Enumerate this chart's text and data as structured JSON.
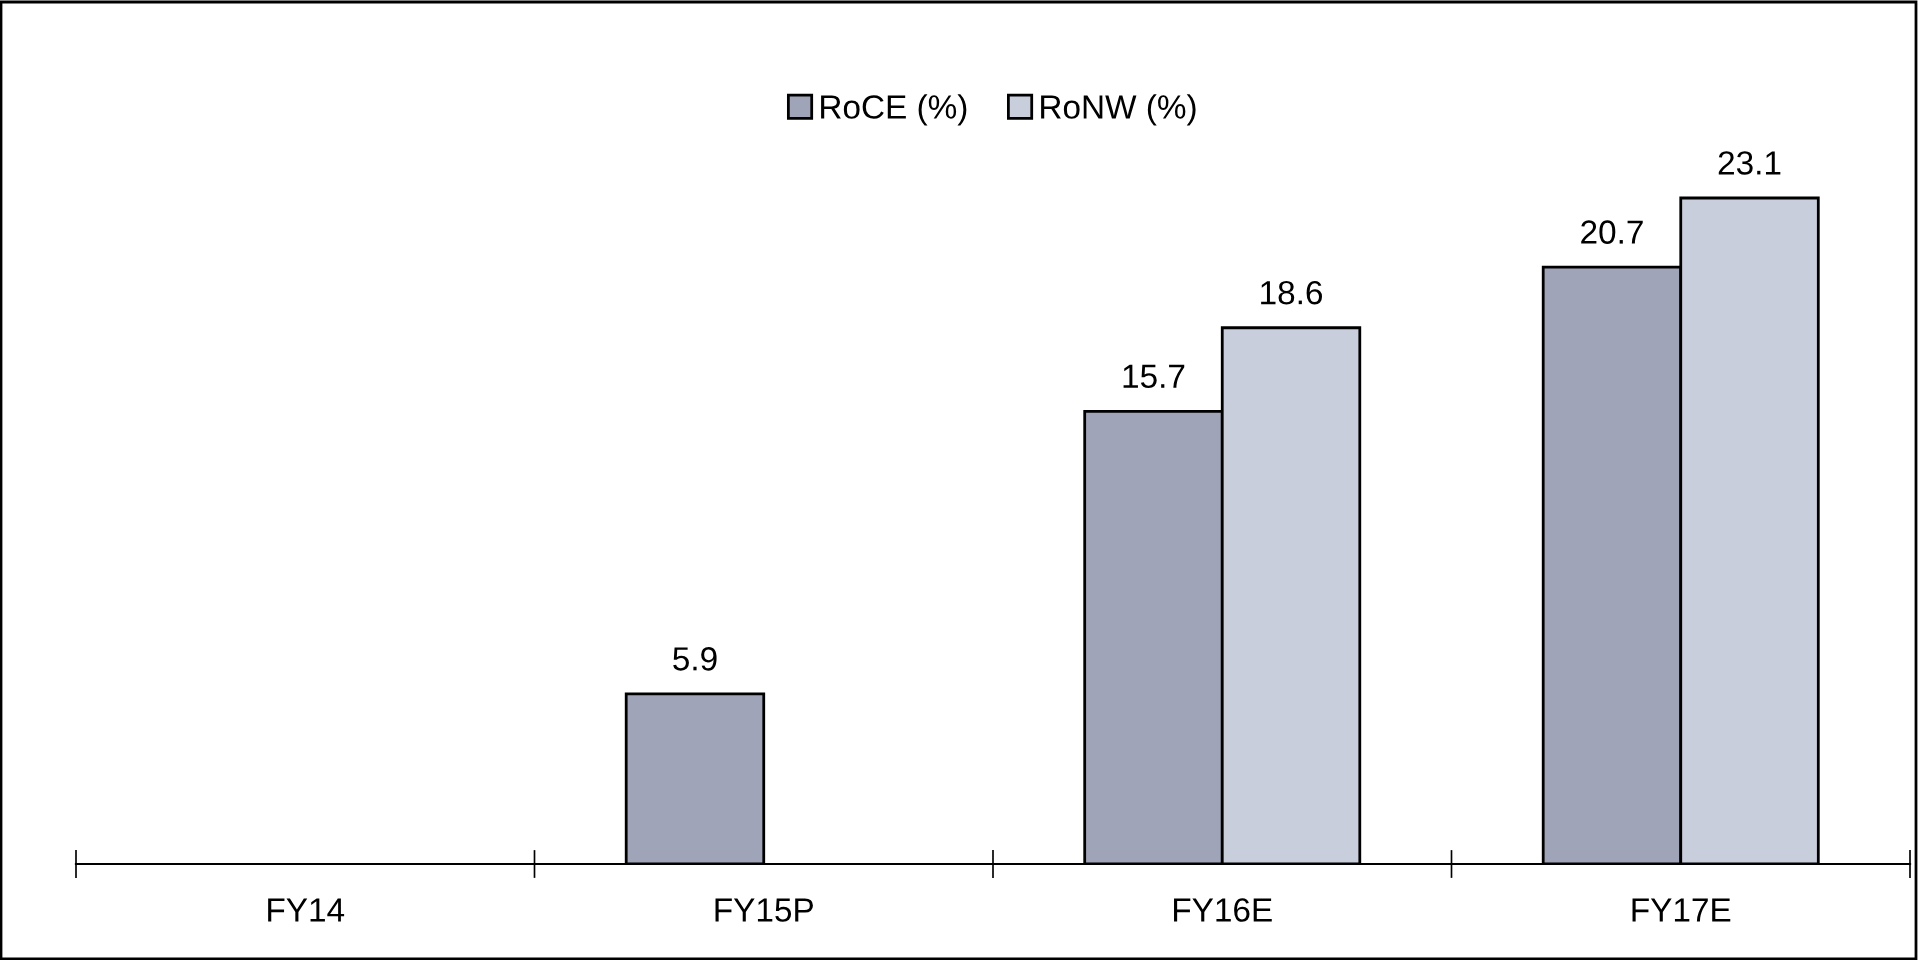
{
  "chart_data": {
    "type": "bar",
    "categories": [
      "FY14",
      "FY15P",
      "FY16E",
      "FY17E"
    ],
    "series": [
      {
        "name": "RoCE (%)",
        "color": "#a0a4b8",
        "values": [
          null,
          5.9,
          15.7,
          20.7
        ]
      },
      {
        "name": "RoNW (%)",
        "color": "#c8cedb",
        "values": [
          null,
          null,
          18.6,
          23.1
        ]
      }
    ],
    "data_labels": true,
    "legend": "top",
    "grid": false,
    "tick_labels": "x"
  }
}
